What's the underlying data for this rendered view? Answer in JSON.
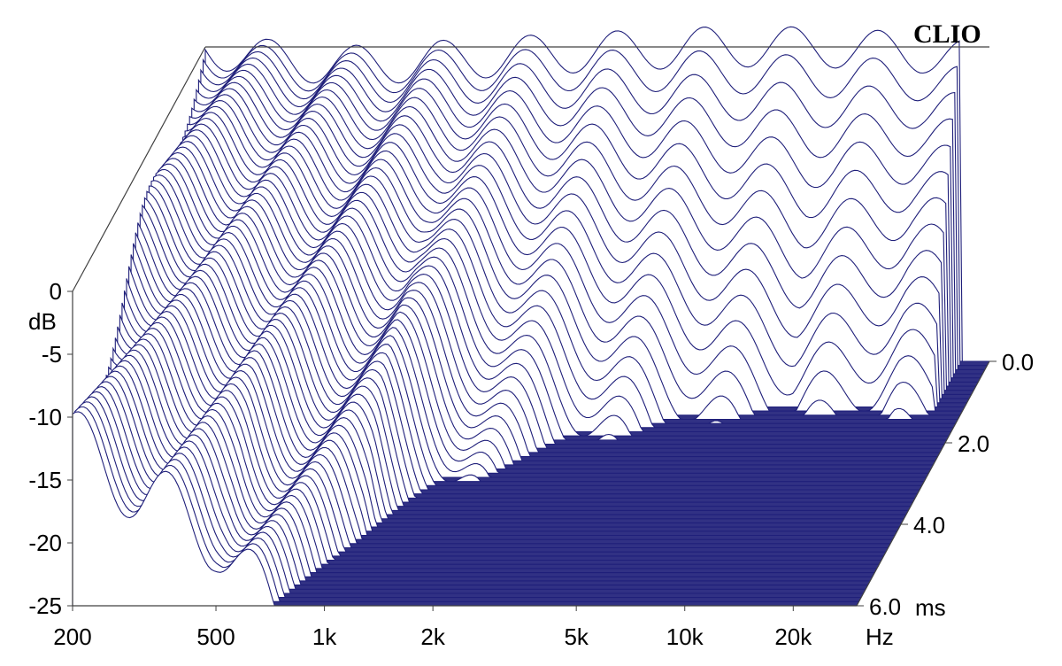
{
  "brand": "CLIO",
  "colors": {
    "trace": "#1f1f7a",
    "floor": "#1f1f7a",
    "frame": "#404040",
    "background": "#ffffff"
  },
  "chart_data": {
    "type": "waterfall",
    "title": "",
    "x_axis": {
      "label": "Hz",
      "scale": "log",
      "range_hz": [
        200,
        30000
      ],
      "ticks": [
        {
          "value": 200,
          "label": "200"
        },
        {
          "value": 500,
          "label": "500"
        },
        {
          "value": 1000,
          "label": "1k"
        },
        {
          "value": 2000,
          "label": "2k"
        },
        {
          "value": 5000,
          "label": "5k"
        },
        {
          "value": 10000,
          "label": "10k"
        },
        {
          "value": 20000,
          "label": "20k"
        }
      ]
    },
    "y_axis": {
      "label": "dB",
      "range_db": [
        -25,
        0
      ],
      "ticks": [
        {
          "value": 0,
          "label": "0"
        },
        {
          "value": -5,
          "label": "-5"
        },
        {
          "value": -10,
          "label": "-10"
        },
        {
          "value": -15,
          "label": "-15"
        },
        {
          "value": -20,
          "label": "-20"
        },
        {
          "value": -25,
          "label": "-25"
        }
      ]
    },
    "z_axis": {
      "label": "ms",
      "range_ms": [
        0,
        6
      ],
      "ticks": [
        {
          "value": 0,
          "label": "0.0"
        },
        {
          "value": 2,
          "label": "2.0"
        },
        {
          "value": 4,
          "label": "4.0"
        },
        {
          "value": 6,
          "label": "6.0"
        }
      ]
    },
    "slice_count": 60,
    "initial_response_db": [
      {
        "hz": 200,
        "db": 0
      },
      {
        "hz": 300,
        "db": -1
      },
      {
        "hz": 500,
        "db": -1.5
      },
      {
        "hz": 1000,
        "db": -1
      },
      {
        "hz": 2000,
        "db": -0.5
      },
      {
        "hz": 5000,
        "db": 0
      },
      {
        "hz": 10000,
        "db": 0
      },
      {
        "hz": 20000,
        "db": -0.5
      },
      {
        "hz": 25000,
        "db": -1
      }
    ],
    "decay_rate_db_per_ms": [
      {
        "hz": 200,
        "db_per_ms": 2
      },
      {
        "hz": 500,
        "db_per_ms": 3
      },
      {
        "hz": 1000,
        "db_per_ms": 5
      },
      {
        "hz": 2000,
        "db_per_ms": 10
      },
      {
        "hz": 5000,
        "db_per_ms": 16
      },
      {
        "hz": 10000,
        "db_per_ms": 20
      },
      {
        "hz": 20000,
        "db_per_ms": 18
      }
    ]
  }
}
